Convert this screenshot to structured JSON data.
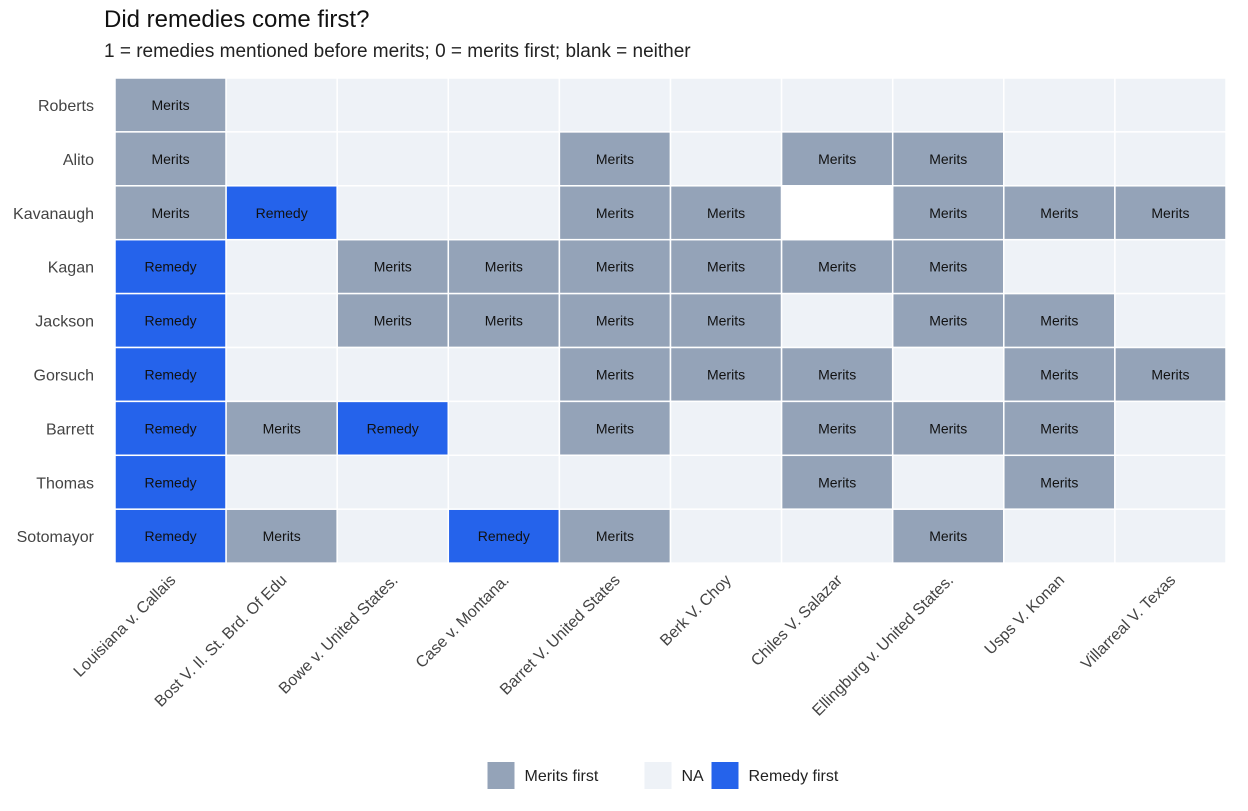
{
  "title": "Did remedies come first?",
  "subtitle": "1 = remedies mentioned before merits; 0 = merits first; blank = neither",
  "colors": {
    "merits": "#94a3b8",
    "remedy": "#2563eb",
    "na": "#eef2f7",
    "blank": "#ffffff",
    "grid": "#ffffff",
    "axis_text": "#444444",
    "cell_text": "#111111"
  },
  "chart_data": {
    "type": "heatmap",
    "title": "Did remedies come first?",
    "subtitle": "1 = remedies mentioned before merits; 0 = merits first; blank = neither",
    "value_meaning": {
      "0": "Merits",
      "1": "Remedy"
    },
    "rows": [
      "Roberts",
      "Alito",
      "Kavanaugh",
      "Kagan",
      "Jackson",
      "Gorsuch",
      "Barrett",
      "Thomas",
      "Sotomayor"
    ],
    "columns": [
      "Louisiana v. Callais",
      "Bost V. Il. St. Brd. Of Edu",
      "Bowe v. United States.",
      "Case v. Montana.",
      "Barret V. United States",
      "Berk V. Choy",
      "Chiles V. Salazar",
      "Ellingburg v. United States.",
      "Usps V. Konan",
      "Villarreal V. Texas"
    ],
    "cells": [
      [
        "M",
        "NA",
        "NA",
        "NA",
        "NA",
        "NA",
        "NA",
        "NA",
        "NA",
        "NA"
      ],
      [
        "M",
        "NA",
        "NA",
        "NA",
        "M",
        "NA",
        "M",
        "M",
        "NA",
        "NA"
      ],
      [
        "M",
        "R",
        "NA",
        "NA",
        "M",
        "M",
        "",
        "M",
        "M",
        "M"
      ],
      [
        "R",
        "NA",
        "M",
        "M",
        "M",
        "M",
        "M",
        "M",
        "NA",
        "NA"
      ],
      [
        "R",
        "NA",
        "M",
        "M",
        "M",
        "M",
        "NA",
        "M",
        "M",
        "NA"
      ],
      [
        "R",
        "NA",
        "NA",
        "NA",
        "M",
        "M",
        "M",
        "NA",
        "M",
        "M"
      ],
      [
        "R",
        "M",
        "R",
        "NA",
        "M",
        "NA",
        "M",
        "M",
        "M",
        "NA"
      ],
      [
        "R",
        "NA",
        "NA",
        "NA",
        "NA",
        "NA",
        "M",
        "NA",
        "M",
        "NA"
      ],
      [
        "R",
        "M",
        "NA",
        "R",
        "M",
        "NA",
        "NA",
        "M",
        "NA",
        "NA"
      ]
    ],
    "cell_labels": {
      "M": "Merits",
      "R": "Remedy"
    },
    "legend": [
      {
        "key": "M",
        "label": "Merits first"
      },
      {
        "key": "NA",
        "label": "NA"
      },
      {
        "key": "R",
        "label": "Remedy first"
      }
    ],
    "legend_position": "bottom"
  }
}
